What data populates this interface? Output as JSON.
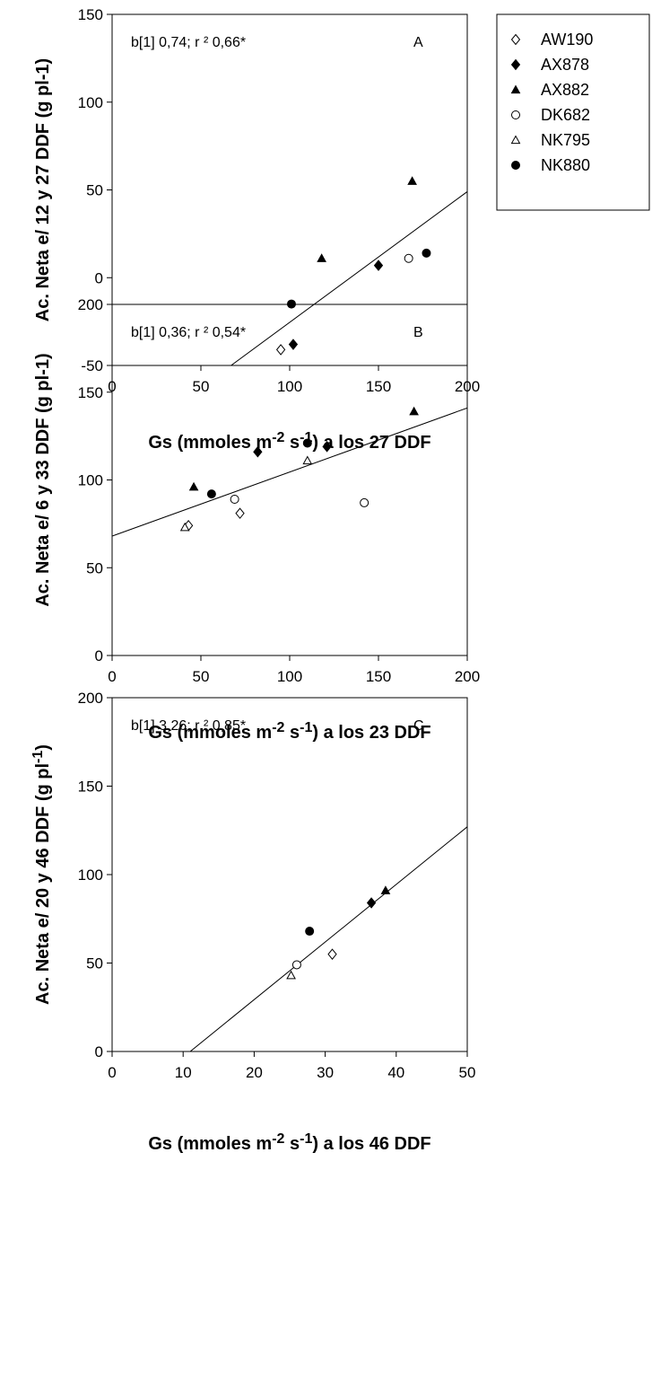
{
  "legend": {
    "entries": [
      {
        "name": "AW190",
        "marker": "open-diamond"
      },
      {
        "name": "AX878",
        "marker": "filled-diamond"
      },
      {
        "name": "AX882",
        "marker": "filled-triangle"
      },
      {
        "name": "DK682",
        "marker": "open-circle"
      },
      {
        "name": "NK795",
        "marker": "open-triangle"
      },
      {
        "name": "NK880",
        "marker": "filled-circle"
      }
    ],
    "placement": "top-right"
  },
  "chart_data": [
    {
      "type": "scatter",
      "panel_letter": "A",
      "annotation": "b[1]  0,74; r ²  0,66*",
      "xlabel_pre": "Gs (mmoles m",
      "xlabel_sup1": "-2",
      "xlabel_mid": " s",
      "xlabel_sup2": "-1",
      "xlabel_post": ") a los 27 DDF",
      "ylabel": "Ac. Neta e/ 12 y 27 DDF (g pl-1)",
      "ylabel_sup": "",
      "xlim": [
        0,
        200
      ],
      "ylim": [
        -50,
        150
      ],
      "xticks": [
        0,
        50,
        100,
        150,
        200
      ],
      "yticks": [
        -50,
        0,
        50,
        100,
        150
      ],
      "grid": false,
      "points": [
        {
          "series": "AW190",
          "x": 95,
          "y": -41
        },
        {
          "series": "AX878",
          "x": 102,
          "y": -38
        },
        {
          "series": "AX878",
          "x": 150,
          "y": 7
        },
        {
          "series": "AX882",
          "x": 118,
          "y": 11
        },
        {
          "series": "AX882",
          "x": 169,
          "y": 55
        },
        {
          "series": "DK682",
          "x": 167,
          "y": 11
        },
        {
          "series": "NK880",
          "x": 101,
          "y": -15
        },
        {
          "series": "NK880",
          "x": 177,
          "y": 14
        }
      ],
      "fit_line": [
        [
          67,
          -50
        ],
        [
          200,
          49
        ]
      ]
    },
    {
      "type": "scatter",
      "panel_letter": "B",
      "annotation": "b[1]  0,36; r ²  0,54*",
      "xlabel_pre": "Gs (mmoles m",
      "xlabel_sup1": "-2",
      "xlabel_mid": " s",
      "xlabel_sup2": "-1",
      "xlabel_post": ") a los 23 DDF",
      "ylabel": "Ac. Neta e/ 6 y 33 DDF (g pl-1)",
      "ylabel_sup": "",
      "xlim": [
        0,
        200
      ],
      "ylim": [
        0,
        200
      ],
      "xticks": [
        0,
        50,
        100,
        150,
        200
      ],
      "yticks": [
        0,
        50,
        100,
        150,
        200
      ],
      "grid": false,
      "points": [
        {
          "series": "AW190",
          "x": 43,
          "y": 74
        },
        {
          "series": "AW190",
          "x": 72,
          "y": 81
        },
        {
          "series": "AX878",
          "x": 82,
          "y": 116
        },
        {
          "series": "AX878",
          "x": 121,
          "y": 119
        },
        {
          "series": "AX882",
          "x": 46,
          "y": 96
        },
        {
          "series": "AX882",
          "x": 170,
          "y": 139
        },
        {
          "series": "DK682",
          "x": 69,
          "y": 89
        },
        {
          "series": "DK682",
          "x": 142,
          "y": 87
        },
        {
          "series": "NK795",
          "x": 41,
          "y": 73
        },
        {
          "series": "NK795",
          "x": 110,
          "y": 111
        },
        {
          "series": "NK880",
          "x": 56,
          "y": 92
        },
        {
          "series": "NK880",
          "x": 110,
          "y": 121
        }
      ],
      "fit_line": [
        [
          0,
          68
        ],
        [
          200,
          141
        ]
      ]
    },
    {
      "type": "scatter",
      "panel_letter": "C",
      "annotation": "b[1]  3,26; r ²  0,85*",
      "xlabel_pre": "Gs (mmoles m",
      "xlabel_sup1": "-2",
      "xlabel_mid": " s",
      "xlabel_sup2": "-1",
      "xlabel_post": ") a los 46 DDF",
      "ylabel": "Ac. Neta e/ 20 y 46 DDF (g pl",
      "ylabel_sup": "-1",
      "ylabel_post": ")",
      "xlim": [
        0,
        50
      ],
      "ylim": [
        0,
        200
      ],
      "xticks": [
        0,
        10,
        20,
        30,
        40,
        50
      ],
      "yticks": [
        0,
        50,
        100,
        150,
        200
      ],
      "grid": false,
      "points": [
        {
          "series": "AW190",
          "x": 31,
          "y": 55
        },
        {
          "series": "AX878",
          "x": 36.5,
          "y": 84
        },
        {
          "series": "AX882",
          "x": 38.5,
          "y": 91
        },
        {
          "series": "DK682",
          "x": 26,
          "y": 49
        },
        {
          "series": "NK795",
          "x": 25.2,
          "y": 43
        },
        {
          "series": "NK880",
          "x": 27.8,
          "y": 68
        }
      ],
      "fit_line": [
        [
          11,
          0
        ],
        [
          50,
          127
        ]
      ]
    }
  ]
}
